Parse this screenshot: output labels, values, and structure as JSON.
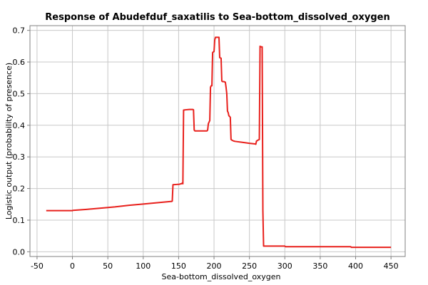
{
  "chart_data": {
    "type": "line",
    "title": "Response of Abudefduf_saxatilis to Sea-bottom_dissolved_oxygen",
    "xlabel": "Sea-bottom_dissolved_oxygen",
    "ylabel": "Logistic output (probability of presence)",
    "xlim": [
      -60,
      470
    ],
    "ylim": [
      -0.015,
      0.715
    ],
    "xticks": [
      -50,
      0,
      50,
      100,
      150,
      200,
      250,
      300,
      350,
      400,
      450
    ],
    "xtick_labels": [
      "-50",
      "0",
      "50",
      "100",
      "150",
      "200",
      "250",
      "300",
      "350",
      "400",
      "450"
    ],
    "yticks": [
      0.0,
      0.1,
      0.2,
      0.3,
      0.4,
      0.5,
      0.6,
      0.7
    ],
    "ytick_labels": [
      "0.0",
      "0.1",
      "0.2",
      "0.3",
      "0.4",
      "0.5",
      "0.6",
      "0.7"
    ],
    "grid": true,
    "line_color": "#e8201c",
    "series": [
      {
        "x": [
          -37,
          0,
          0.5,
          20,
          40,
          60,
          80,
          100,
          120,
          139,
          140,
          141,
          142,
          148,
          150,
          152,
          153,
          154,
          155,
          156,
          157,
          160,
          165,
          170,
          171,
          172,
          173,
          190,
          191,
          192,
          193,
          194,
          195,
          196,
          197,
          198,
          199,
          200,
          201,
          202,
          203,
          205,
          206,
          207,
          208,
          210,
          211,
          212,
          213,
          214,
          216,
          217,
          218,
          219,
          220,
          221,
          222,
          223,
          224,
          226,
          228,
          230,
          240,
          250,
          258,
          259,
          260,
          262,
          264,
          265,
          266,
          268,
          269,
          270,
          271,
          300,
          301,
          350,
          393,
          394,
          395,
          450
        ],
        "y": [
          0.13,
          0.13,
          0.131,
          0.134,
          0.138,
          0.142,
          0.147,
          0.151,
          0.155,
          0.159,
          0.159,
          0.16,
          0.212,
          0.213,
          0.213,
          0.214,
          0.215,
          0.215,
          0.217,
          0.215,
          0.448,
          0.449,
          0.45,
          0.45,
          0.449,
          0.385,
          0.382,
          0.382,
          0.385,
          0.405,
          0.41,
          0.415,
          0.52,
          0.525,
          0.525,
          0.63,
          0.632,
          0.633,
          0.67,
          0.678,
          0.678,
          0.678,
          0.678,
          0.678,
          0.614,
          0.612,
          0.54,
          0.538,
          0.538,
          0.538,
          0.536,
          0.52,
          0.5,
          0.445,
          0.44,
          0.43,
          0.428,
          0.425,
          0.355,
          0.352,
          0.35,
          0.349,
          0.346,
          0.343,
          0.341,
          0.34,
          0.35,
          0.353,
          0.355,
          0.65,
          0.648,
          0.648,
          0.13,
          0.018,
          0.018,
          0.018,
          0.016,
          0.016,
          0.016,
          0.014,
          0.014,
          0.014
        ]
      }
    ]
  }
}
